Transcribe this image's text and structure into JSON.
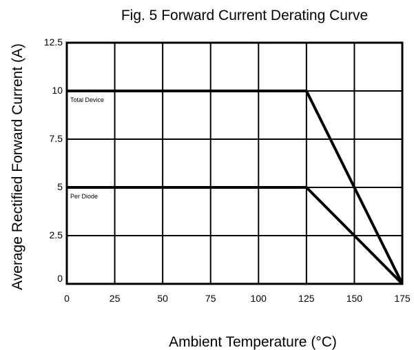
{
  "chart_data": {
    "type": "line",
    "title": "Fig. 5 Forward Current Derating Curve",
    "xlabel": "Ambient Temperature (°C)",
    "ylabel": "Average Rectified Forward Current (A)",
    "xlim": [
      0,
      175
    ],
    "ylim": [
      0,
      12.5
    ],
    "grid": true,
    "x_ticks": [
      "0",
      "25",
      "50",
      "75",
      "100",
      "125",
      "150",
      "175"
    ],
    "y_ticks": [
      "0",
      "2.5",
      "5",
      "7.5",
      "10",
      "12.5"
    ],
    "series": [
      {
        "name": "Total Device",
        "x": [
          0,
          125,
          175
        ],
        "y": [
          10,
          10,
          0
        ]
      },
      {
        "name": "Per Diode",
        "x": [
          0,
          125,
          175
        ],
        "y": [
          5,
          5,
          0
        ]
      }
    ]
  }
}
